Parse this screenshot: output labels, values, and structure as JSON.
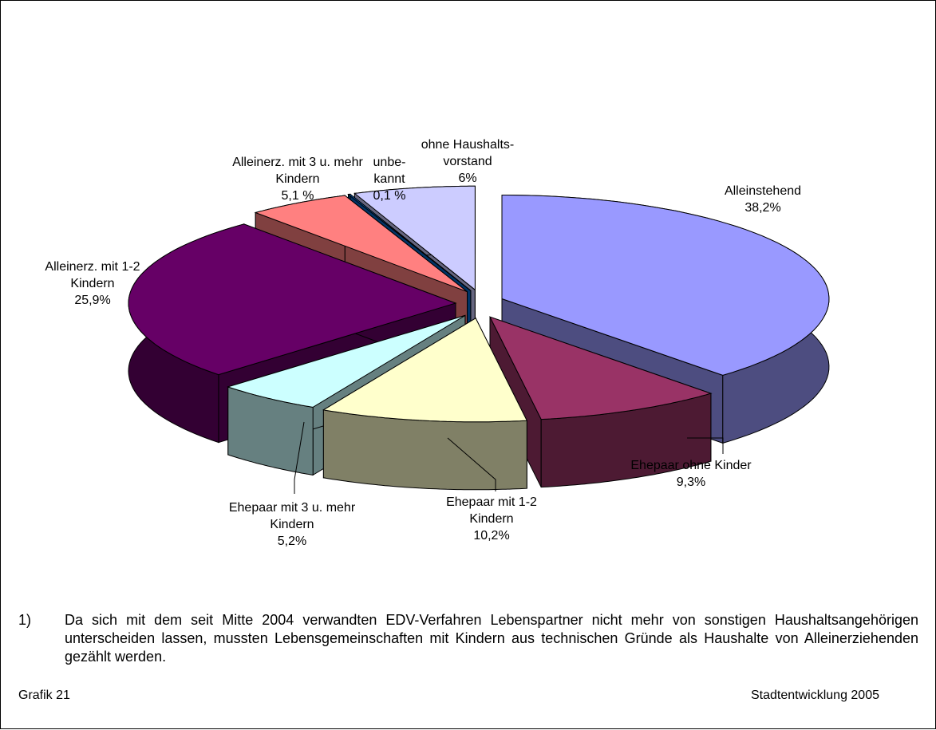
{
  "chart_data": {
    "type": "pie",
    "categories": [
      "Alleinstehend",
      "Ehepaar ohne Kinder",
      "Ehepaar mit 1-2 Kindern",
      "Ehepaar mit 3 u. mehr Kindern",
      "Alleinerz. mit 1-2 Kindern",
      "Alleinerz. mit 3 u. mehr Kindern",
      "unbe-kannt",
      "ohne Haushalts-vorstand"
    ],
    "values": [
      38.2,
      9.3,
      10.2,
      5.2,
      25.9,
      5.1,
      0.1,
      6
    ],
    "value_labels": [
      "38,2%",
      "9,3%",
      "10,2%",
      "5,2%",
      "25,9%",
      "5,1 %",
      "0,1 %",
      "6%"
    ],
    "colors": [
      "#9999ff",
      "#993366",
      "#ffffcc",
      "#ccffff",
      "#660066",
      "#ff8080",
      "#0066cc",
      "#ccccff"
    ]
  },
  "footnote": {
    "marker": "1)",
    "text": "Da sich mit dem seit Mitte 2004 verwandten EDV-Verfahren Lebenspartner nicht mehr von sonstigen Haushaltsangehörigen unterscheiden lassen, mussten Lebensgemeinschaften mit Kindern aus technischen Gründe als Haushalte von Alleinerziehenden gezählt werden."
  },
  "footer": {
    "left": "Grafik 21",
    "right": "Stadtentwicklung 2005"
  }
}
